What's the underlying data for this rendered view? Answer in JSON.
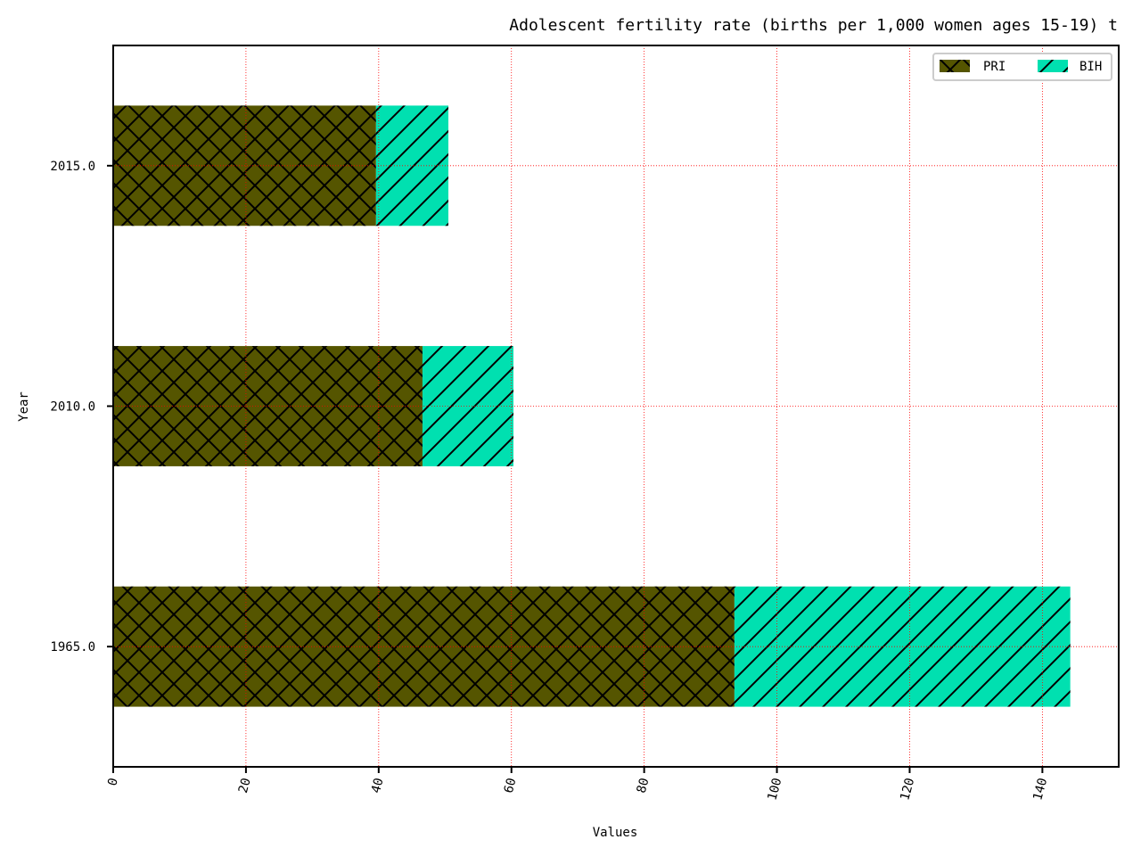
{
  "chart_data": {
    "type": "bar",
    "orientation": "horizontal",
    "stacked": true,
    "title": "Adolescent fertility rate (births per 1,000 women ages 15-19) t",
    "xlabel": "Values",
    "ylabel": "Year",
    "categories": [
      "1965.0",
      "2010.0",
      "2015.0"
    ],
    "series": [
      {
        "name": "PRI",
        "values": [
          93.6,
          46.6,
          39.6
        ],
        "color": "#555500",
        "hatch": "cross"
      },
      {
        "name": "BIH",
        "values": [
          50.6,
          13.7,
          10.9
        ],
        "color": "#00e0b0",
        "hatch": "diagonal"
      }
    ],
    "xlim": [
      0,
      151.5
    ],
    "xticks": [
      "0",
      "20",
      "40",
      "60",
      "80",
      "100",
      "120",
      "140"
    ],
    "grid": true,
    "grid_color": "#ff0000",
    "legend_position": "top-right",
    "legend_columns": 2
  }
}
